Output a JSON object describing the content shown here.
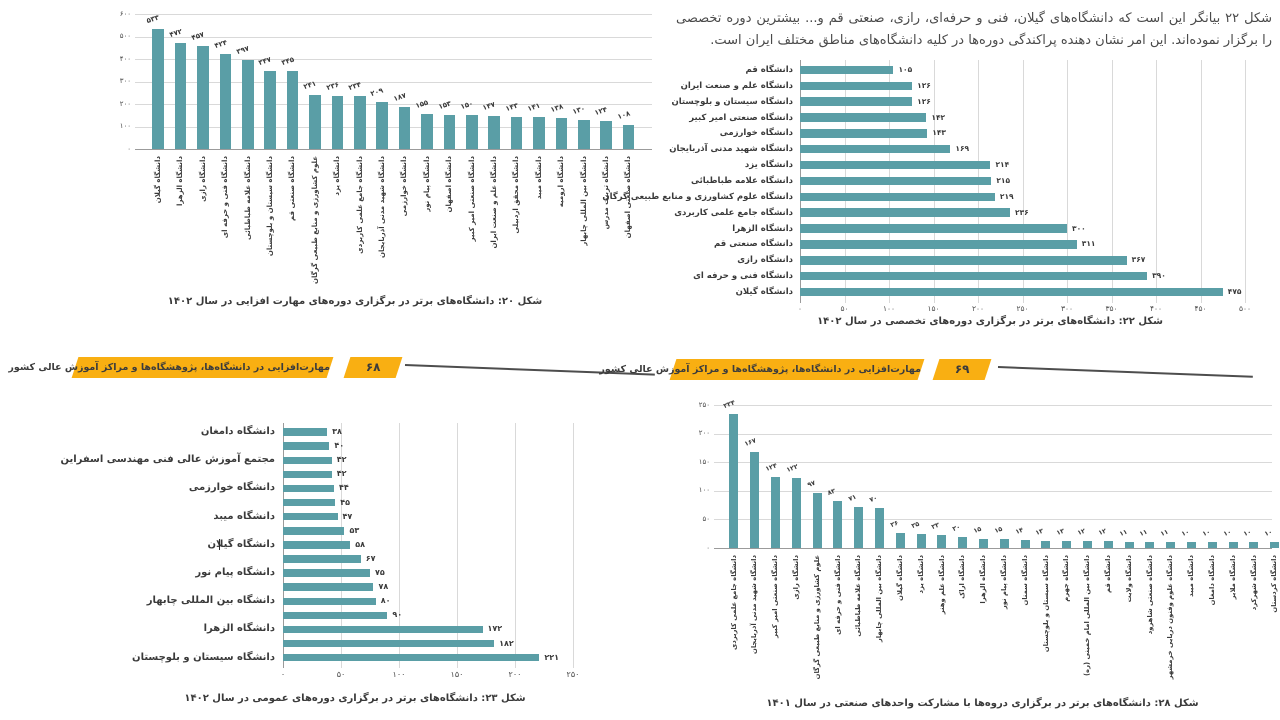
{
  "document": {
    "intro_paragraph": "شکل ۲۲ بیانگر این است که دانشگاه‌های گیلان، فنی و حرفه‌ای، رازی، صنعتی قم و... بیشترین دوره تخصصی را برگزار نموده‌اند. این امر نشان دهنده پراکندگی دوره‌ها در کلیه دانشگاه‌های مناطق مختلف ایران است.",
    "banners": [
      {
        "title": "مهارت‌افزایی در دانشگاه‌ها، پژوهشگاه‌ها و مراکز آموزش عالی کشور",
        "page_number": "۶۸"
      },
      {
        "title": "مهارت‌افزایی در دانشگاه‌ها، پژوهشگاه‌ها و مراکز آموزش عالی کشور",
        "page_number": "۶۹"
      }
    ]
  },
  "colors": {
    "bar_teal": "#5A9EA6",
    "banner_yellow": "#F9AF12",
    "gridline": "#D9D9D9",
    "axis_line": "#9B9B9B",
    "text": "#3D3D3D"
  },
  "chart_data": [
    {
      "id": "fig20",
      "type": "bar",
      "orientation": "vertical",
      "caption": "شکل ۲۰: دانشگاه‌های برتر در برگزاری دوره‌های مهارت افزایی در سال ۱۴۰۲",
      "number_format": "persian-digits",
      "grid": true,
      "value_axis": {
        "min": 0,
        "max": 600,
        "step": 100,
        "ticks": [
          0,
          100,
          200,
          300,
          400,
          500,
          600
        ]
      },
      "categories": [
        "دانشگاه گیلان",
        "دانشگاه الزهرا",
        "دانشگاه رازی",
        "دانشگاه فنی و حرفه ای",
        "دانشگاه علامه طباطبائی",
        "دانشگاه سیستان و بلوچستان",
        "دانشگاه صنعتی قم",
        "علوم کشاورزی و منابع طبیعی گرگان",
        "دانشگاه یزد",
        "دانشگاه جامع علمی کاربردی",
        "دانشگاه شهید مدنی آذربایجان",
        "دانشگاه خوارزمی",
        "دانشگاه پیام نور",
        "دانشگاه اصفهان",
        "دانشگاه صنعتی امیر کبیر",
        "دانشگاه علم و صنعت ایران",
        "دانشگاه محقق اردبیلی",
        "دانشگاه میبد",
        "دانشگاه ارومیه",
        "دانشگاه بین المللی چابهار",
        "دانشگاه تربیت مدرس",
        "دانشگاه صنعتی اصفهان"
      ],
      "values": [
        533,
        472,
        457,
        424,
        397,
        347,
        345,
        241,
        236,
        234,
        209,
        187,
        155,
        153,
        150,
        147,
        143,
        141,
        138,
        130,
        124,
        108
      ]
    },
    {
      "id": "fig22",
      "type": "bar",
      "orientation": "horizontal",
      "caption": "شکل ۲۲: دانشگاه‌های برتر در برگزاری دوره‌های تخصصی در سال ۱۴۰۲",
      "number_format": "persian-digits",
      "grid": true,
      "value_axis": {
        "min": 0,
        "max": 500,
        "step": 50,
        "ticks": [
          0,
          50,
          100,
          150,
          200,
          250,
          300,
          350,
          400,
          450,
          500
        ]
      },
      "categories": [
        "دانشگاه قم",
        "دانشگاه علم و صنعت ایران",
        "دانشگاه سیستان و بلوچستان",
        "دانشگاه صنعتی امیر کبیر",
        "دانشگاه خوارزمی",
        "دانشگاه شهید مدنی آذربایجان",
        "دانشگاه یزد",
        "دانشگاه علامه طباطبائی",
        "دانشگاه علوم کشاورزی و منابع طبیعی گرگان",
        "دانشگاه جامع علمی کاربردی",
        "دانشگاه الزهرا",
        "دانشگاه صنعتی قم",
        "دانشگاه رازی",
        "دانشگاه فنی و حرفه ای",
        "دانشگاه گیلان"
      ],
      "values": [
        105,
        126,
        126,
        142,
        143,
        169,
        214,
        215,
        219,
        236,
        300,
        311,
        367,
        390,
        475
      ]
    },
    {
      "id": "fig23",
      "type": "bar",
      "orientation": "horizontal",
      "caption": "شکل ۲۳: دانشگاه‌های برتر در برگزاری دوره‌های عمومی در سال ۱۴۰۲",
      "number_format": "persian-digits",
      "grid": true,
      "label_every_other": true,
      "value_axis": {
        "min": 0,
        "max": 250,
        "step": 50,
        "ticks": [
          0,
          50,
          100,
          150,
          200,
          250
        ]
      },
      "categories": [
        "دانشگاه دامغان",
        "",
        "مجتمع آموزش عالی فنی مهندسی اسفراین",
        "",
        "دانشگاه خوارزمی",
        "",
        "دانشگاه میبد",
        "",
        "دانشگاه گیلان",
        "",
        "دانشگاه پیام نور",
        "",
        "دانشگاه بین المللی چابهار",
        "",
        "دانشگاه الزهرا",
        "",
        "دانشگاه سیستان و بلوچستان"
      ],
      "values": [
        38,
        40,
        42,
        42,
        44,
        45,
        47,
        53,
        58,
        67,
        75,
        78,
        80,
        90,
        172,
        182,
        221
      ]
    },
    {
      "id": "fig28",
      "type": "bar",
      "orientation": "vertical",
      "caption": "شکل ۲۸: دانشگاه‌های برتر در برگزاری دروه‌ها با مشارکت واحدهای صنعتی در سال ۱۴۰۱",
      "number_format": "persian-digits",
      "grid": true,
      "value_axis": {
        "min": 0,
        "max": 250,
        "step": 50,
        "ticks": [
          0,
          50,
          100,
          150,
          200,
          250
        ]
      },
      "categories": [
        "دانشگاه جامع علمی کاربردی",
        "دانشگاه شهید مدنی آذربایجان",
        "دانشگاه صنعتی امیر کبیر",
        "دانشگاه رازی",
        "علوم کشاورزی و منابع طبیعی گرگان",
        "دانشگاه فنی و حرفه ای",
        "دانشگاه علامه طباطبائی",
        "دانشگاه بین المللی چابهار",
        "دانشگاه گیلان",
        "دانشگاه یزد",
        "دانشگاه علم وهنر",
        "دانشگاه اراک",
        "دانشگاه الزهرا",
        "دانشگاه پیام نور",
        "دانشگاه سمنان",
        "دانشگاه سیستان و بلوچستان",
        "دانشگاه جهرم",
        "دانشگاه بین المللی امام خمینی (ره)",
        "دانشگاه قم",
        "دانشگاه ولایت",
        "دانشگاه صنعتی شاهرود",
        "دانشگاه علوم وفنون دریایی خرمشهر",
        "دانشگاه میبد",
        "دانشگاه دامغان",
        "دانشگاه ملایر",
        "دانشگاه شهرکرد",
        "دانشگاه کردستان"
      ],
      "values": [
        234,
        167,
        124,
        122,
        97,
        83,
        71,
        70,
        26,
        25,
        23,
        20,
        15,
        15,
        14,
        13,
        13,
        12,
        12,
        11,
        11,
        11,
        10,
        10,
        10,
        10,
        10
      ]
    }
  ]
}
